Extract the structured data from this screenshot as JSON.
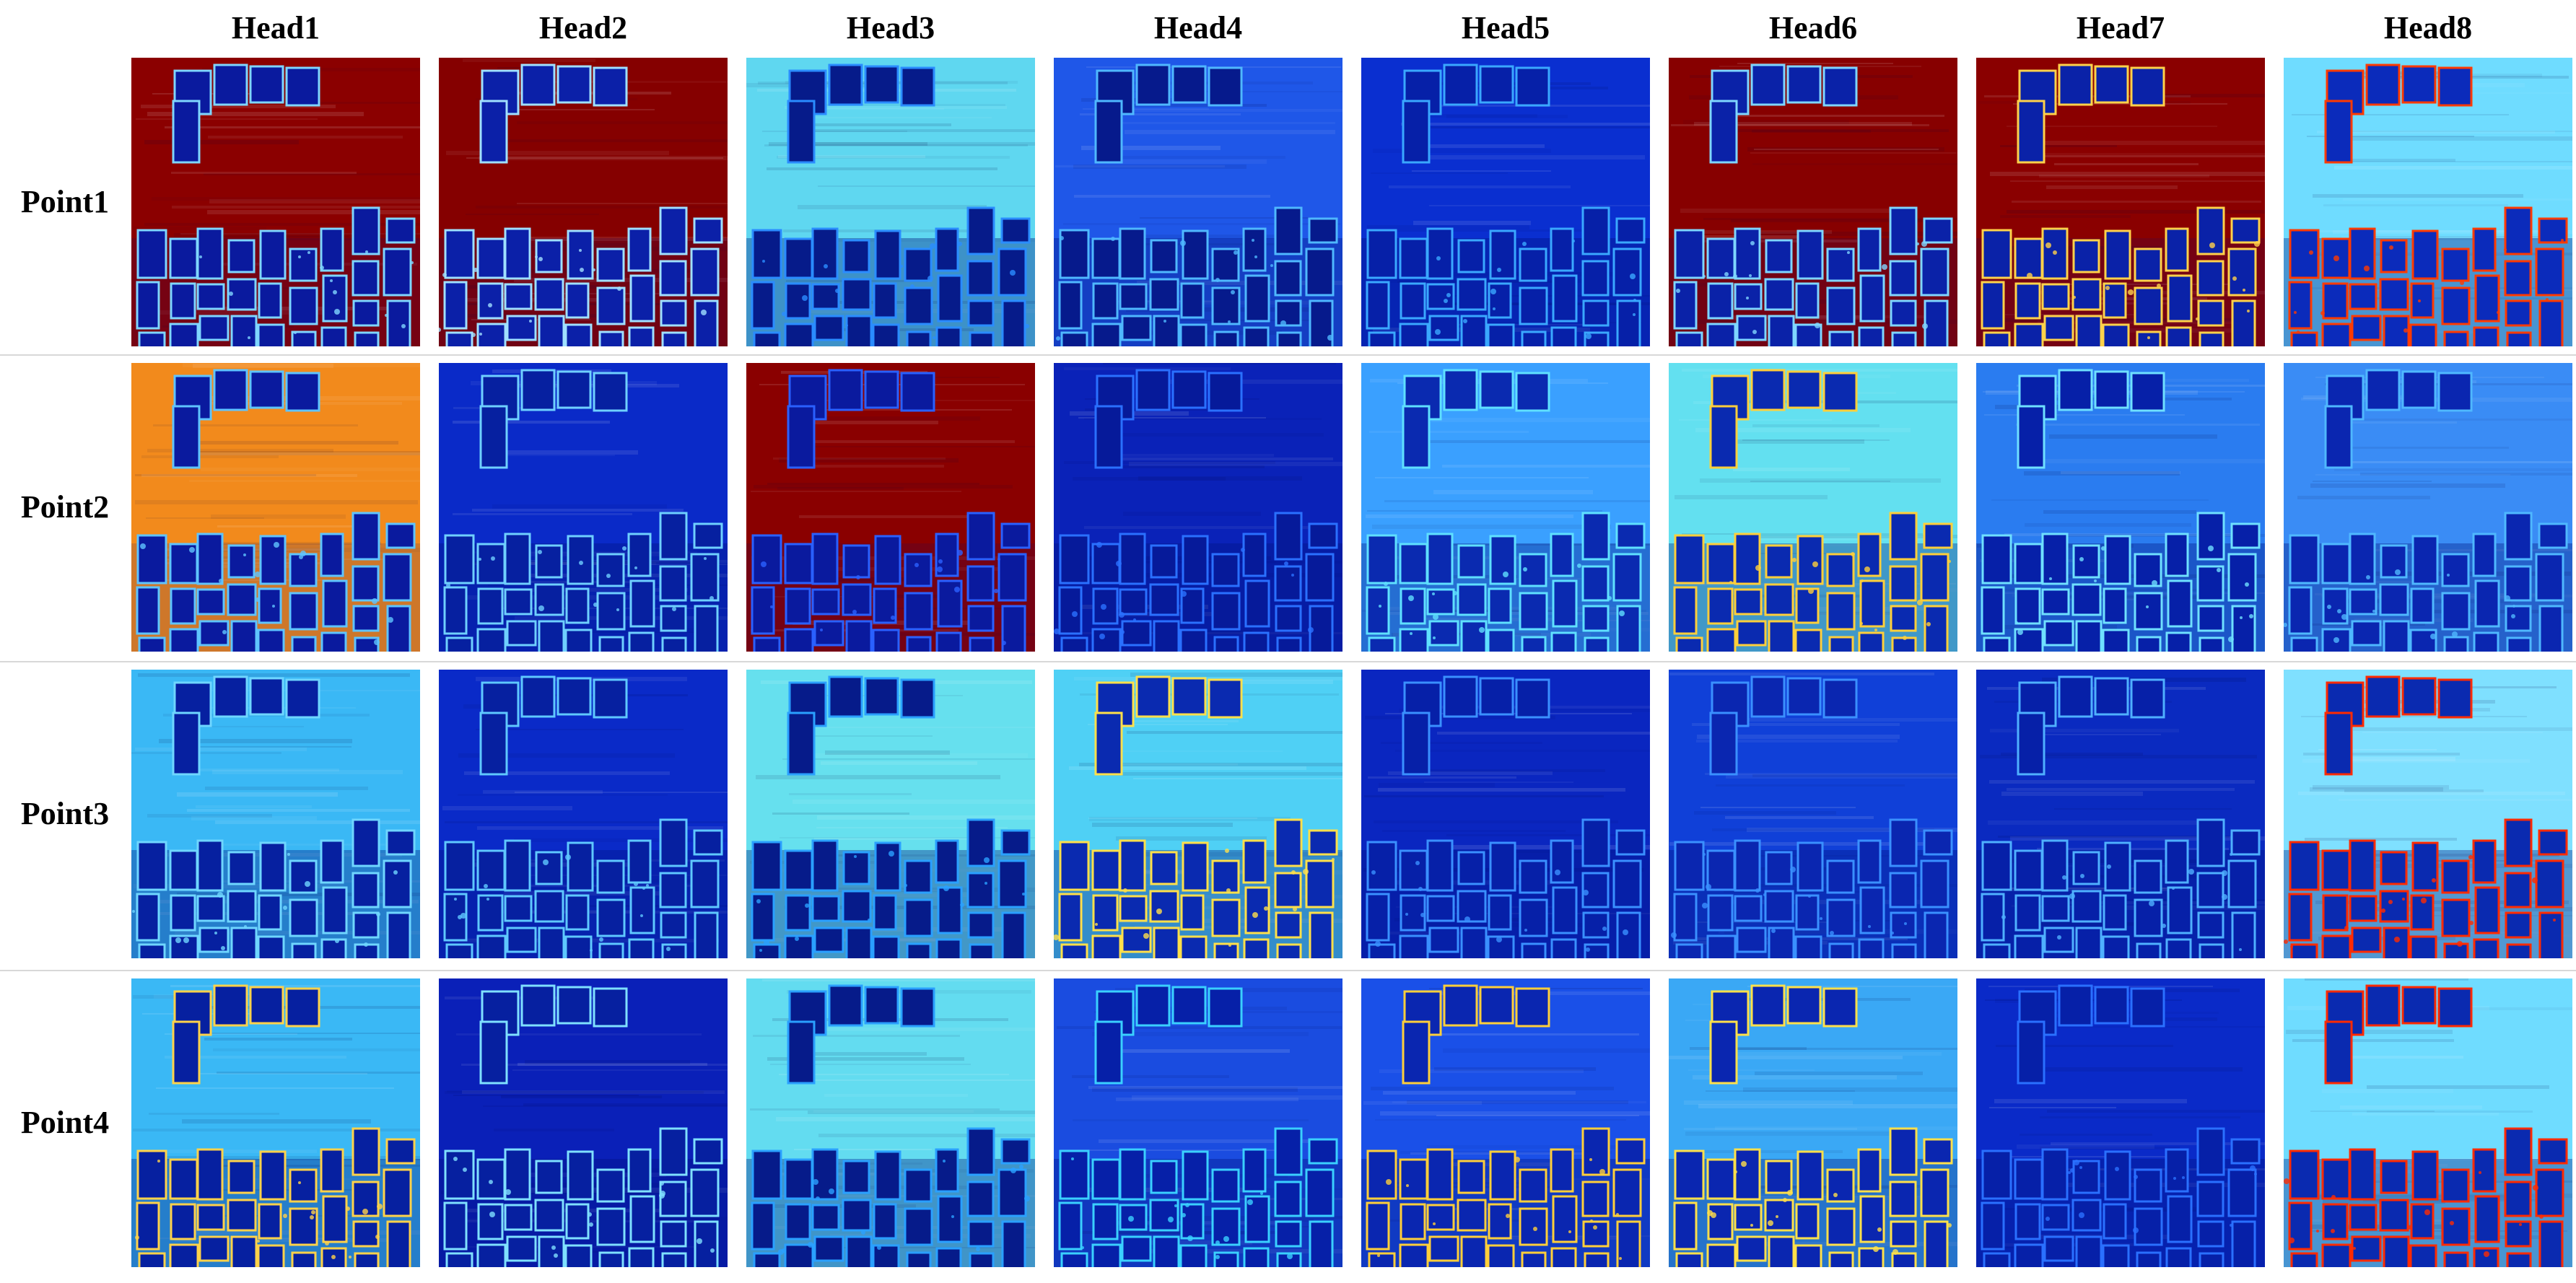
{
  "columns": [
    "Head1",
    "Head2",
    "Head3",
    "Head4",
    "Head5",
    "Head6",
    "Head7",
    "Head8"
  ],
  "rows": [
    "Point1",
    "Point2",
    "Point3",
    "Point4"
  ],
  "colormap": {
    "low": "#00007f",
    "mid": "#00c8ff",
    "high": "#7f0000"
  },
  "maps": [
    [
      {
        "field": "#8b0000",
        "field_strength": "high",
        "buildings": "#0a1a9e",
        "edges": "#7fd6ff"
      },
      {
        "field": "#850000",
        "field_strength": "high",
        "buildings": "#0b20a8",
        "edges": "#a0e0ff"
      },
      {
        "field": "#5fd7f0",
        "field_strength": "mid",
        "buildings": "#061b8a",
        "edges": "#2a8cff"
      },
      {
        "field": "#1f57e8",
        "field_strength": "low",
        "buildings": "#061a8c",
        "edges": "#4fb8ff"
      },
      {
        "field": "#0a2fd0",
        "field_strength": "low",
        "buildings": "#0620a8",
        "edges": "#3aa8ff"
      },
      {
        "field": "#870000",
        "field_strength": "high",
        "buildings": "#0a22a8",
        "edges": "#7fd6ff"
      },
      {
        "field": "#8a0000",
        "field_strength": "high",
        "buildings": "#0a22a8",
        "edges": "#ffd24a"
      },
      {
        "field": "#6fdcff",
        "field_strength": "mid",
        "buildings": "#0b2bbb",
        "edges": "#ff3a00"
      }
    ],
    [
      {
        "field": "#f28a1c",
        "field_strength": "high",
        "buildings": "#0a1a9e",
        "edges": "#5fc4ff"
      },
      {
        "field": "#0a2ac8",
        "field_strength": "low",
        "buildings": "#0620a0",
        "edges": "#6fd0ff"
      },
      {
        "field": "#8a0000",
        "field_strength": "high",
        "buildings": "#0a1a9e",
        "edges": "#2a60ff"
      },
      {
        "field": "#0a22b8",
        "field_strength": "low",
        "buildings": "#061a9a",
        "edges": "#2a70ff"
      },
      {
        "field": "#3aa0ff",
        "field_strength": "mid",
        "buildings": "#0a2ab0",
        "edges": "#5fe0ff"
      },
      {
        "field": "#63e0f0",
        "field_strength": "mid",
        "buildings": "#0a2ab0",
        "edges": "#ffcf3a"
      },
      {
        "field": "#2a7cf0",
        "field_strength": "mid",
        "buildings": "#0620a8",
        "edges": "#6fe0ff"
      },
      {
        "field": "#3a8cf5",
        "field_strength": "mid",
        "buildings": "#0a26b0",
        "edges": "#4fb8ff"
      }
    ],
    [
      {
        "field": "#3ab8f5",
        "field_strength": "mid",
        "buildings": "#0620a0",
        "edges": "#6fd6ff"
      },
      {
        "field": "#0a2ac8",
        "field_strength": "low",
        "buildings": "#0620a0",
        "edges": "#5fc8ff"
      },
      {
        "field": "#66e0ee",
        "field_strength": "mid",
        "buildings": "#061b8a",
        "edges": "#2aa0ff"
      },
      {
        "field": "#4fd0f5",
        "field_strength": "mid",
        "buildings": "#0a2ab0",
        "edges": "#ffe04a"
      },
      {
        "field": "#0a26c0",
        "field_strength": "low",
        "buildings": "#0620a8",
        "edges": "#3a90ff"
      },
      {
        "field": "#1040d8",
        "field_strength": "low",
        "buildings": "#0a26b0",
        "edges": "#3a90ff"
      },
      {
        "field": "#0a2ac0",
        "field_strength": "low",
        "buildings": "#0620a8",
        "edges": "#4fb0ff"
      },
      {
        "field": "#7fe0ff",
        "field_strength": "mid",
        "buildings": "#0a2ab0",
        "edges": "#ff2a00"
      }
    ],
    [
      {
        "field": "#3ab8f5",
        "field_strength": "mid",
        "buildings": "#0620a0",
        "edges": "#ffd24a"
      },
      {
        "field": "#0a20b8",
        "field_strength": "low",
        "buildings": "#0620a0",
        "edges": "#7fe0ff"
      },
      {
        "field": "#63dcf0",
        "field_strength": "mid",
        "buildings": "#061b8a",
        "edges": "#2aa0ff"
      },
      {
        "field": "#1a4ce0",
        "field_strength": "low",
        "buildings": "#0620a8",
        "edges": "#3ad0ff"
      },
      {
        "field": "#1a50e8",
        "field_strength": "low",
        "buildings": "#0a26b0",
        "edges": "#ffcf3a"
      },
      {
        "field": "#3aa8f5",
        "field_strength": "mid",
        "buildings": "#0a26b0",
        "edges": "#ffe04a"
      },
      {
        "field": "#0a2ac8",
        "field_strength": "low",
        "buildings": "#0620a8",
        "edges": "#2a70ff"
      },
      {
        "field": "#6fdcff",
        "field_strength": "mid",
        "buildings": "#0a2ab0",
        "edges": "#ff2a00"
      }
    ]
  ]
}
